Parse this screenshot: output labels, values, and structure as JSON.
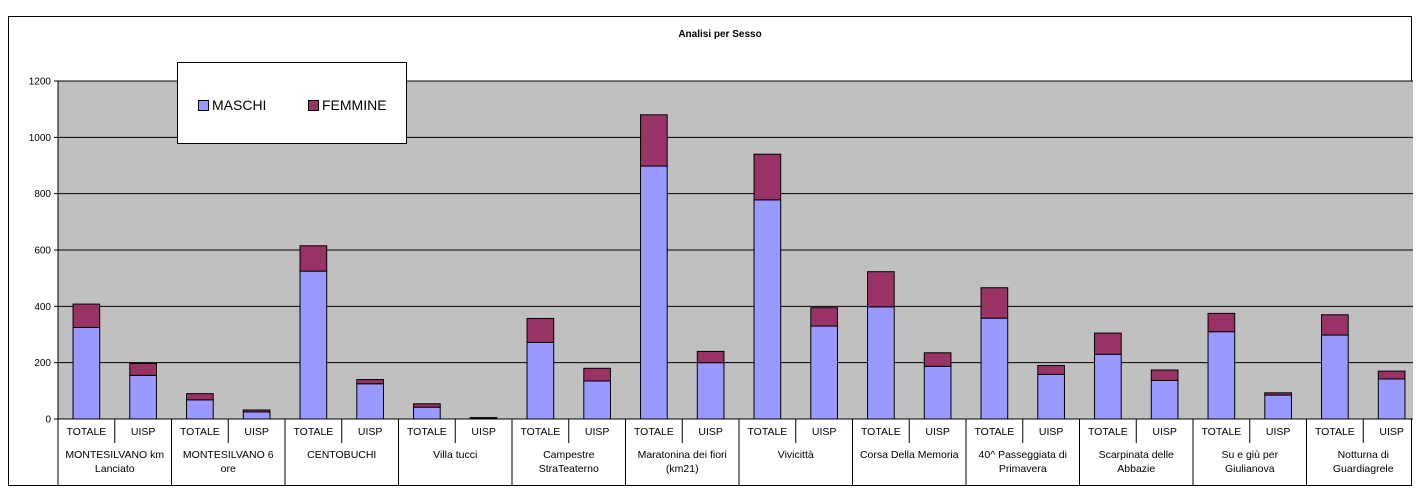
{
  "chart_data": {
    "type": "bar",
    "stacked": true,
    "title": "Analisi per Sesso",
    "xlabel": "",
    "ylabel": "",
    "ylim": [
      0,
      1200
    ],
    "yticks": [
      0,
      200,
      400,
      600,
      800,
      1000,
      1200
    ],
    "grid": true,
    "plot_background": "#C0C0C0",
    "legend_position": "top-left",
    "groups": [
      "MONTESILVANO km Lanciato",
      "MONTESILVANO 6 ore",
      "CENTOBUCHI",
      "Villa tucci",
      "Campestre StraTeaterno",
      "Maratonina dei fiori (km21)",
      "Vivicittà",
      "Corsa Della Memoria",
      "40^ Passeggiata di Primavera",
      "Scarpinata delle Abbazie",
      "Su e giù per Giulianova",
      "Notturna di Guardiagrele"
    ],
    "subcategories": [
      "TOTALE",
      "UISP"
    ],
    "series": [
      {
        "name": "MASCHI",
        "color": "#9999FF",
        "values": [
          325,
          155,
          68,
          25,
          525,
          125,
          42,
          3,
          272,
          135,
          898,
          200,
          778,
          330,
          398,
          187,
          358,
          158,
          230,
          137,
          310,
          85,
          298,
          142
        ]
      },
      {
        "name": "FEMMINE",
        "color": "#993366",
        "values": [
          83,
          42,
          22,
          7,
          90,
          15,
          12,
          2,
          85,
          45,
          182,
          40,
          162,
          65,
          125,
          48,
          108,
          32,
          75,
          37,
          65,
          8,
          72,
          28
        ]
      }
    ]
  }
}
